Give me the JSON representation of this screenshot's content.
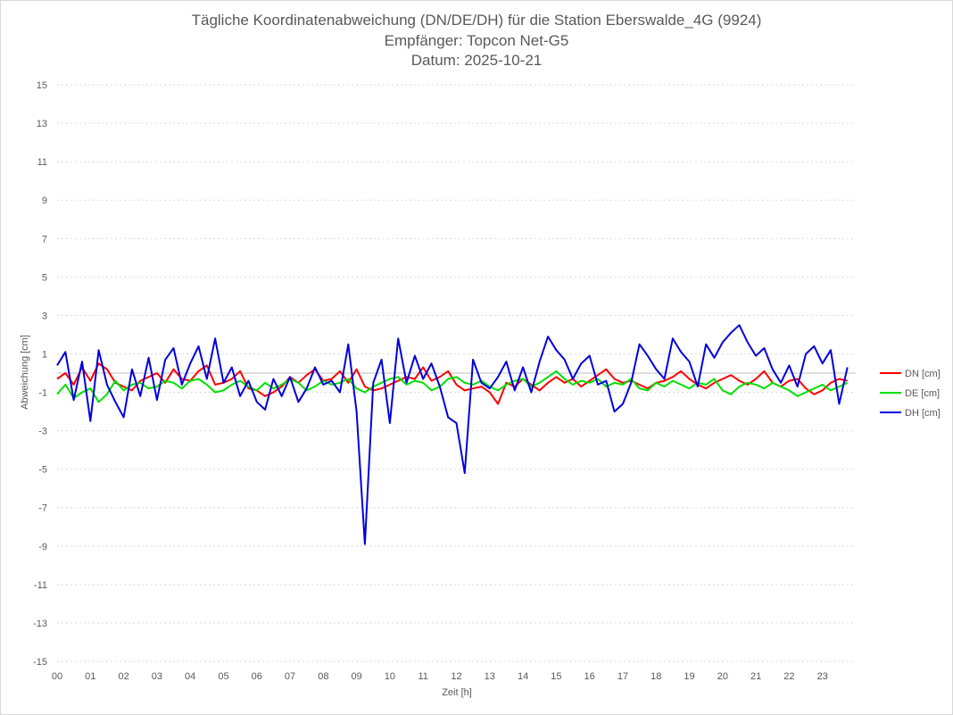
{
  "chart_data": {
    "type": "line",
    "title": [
      "Tägliche Koordinatenabweichung (DN/DE/DH) für die Station Eberswalde_4G (9924)",
      "Empfänger: Topcon Net-G5",
      "Datum: 2025-10-21"
    ],
    "xlabel": "Zeit [h]",
    "ylabel": "Abweichung [cm]",
    "xlim": [
      0,
      24
    ],
    "ylim": [
      -15,
      15
    ],
    "x_ticks": [
      "00",
      "01",
      "02",
      "03",
      "04",
      "05",
      "06",
      "07",
      "08",
      "09",
      "10",
      "11",
      "12",
      "13",
      "14",
      "15",
      "16",
      "17",
      "18",
      "19",
      "20",
      "21",
      "22",
      "23"
    ],
    "y_ticks": [
      15,
      13,
      11,
      9,
      7,
      5,
      3,
      1,
      -1,
      -3,
      -5,
      -7,
      -9,
      -11,
      -13,
      -15
    ],
    "grid": "horizontal-dotted",
    "legend_position": "right",
    "sample_step_h": 0.25,
    "series": [
      {
        "name": "DN [cm]",
        "color": "#ff0000",
        "values": [
          -0.3,
          0.0,
          -0.6,
          0.3,
          -0.4,
          0.5,
          0.2,
          -0.5,
          -0.7,
          -0.9,
          -0.4,
          -0.2,
          0.0,
          -0.5,
          0.2,
          -0.3,
          -0.4,
          0.1,
          0.4,
          -0.6,
          -0.5,
          -0.3,
          0.1,
          -0.8,
          -0.9,
          -1.2,
          -1.0,
          -0.7,
          -0.2,
          -0.5,
          -0.1,
          0.2,
          -0.4,
          -0.3,
          0.1,
          -0.5,
          0.2,
          -0.7,
          -0.9,
          -0.8,
          -0.6,
          -0.4,
          -0.2,
          -0.3,
          0.3,
          -0.4,
          -0.2,
          0.1,
          -0.6,
          -0.9,
          -0.8,
          -0.7,
          -1.0,
          -1.6,
          -0.5,
          -0.7,
          -0.3,
          -0.6,
          -0.9,
          -0.5,
          -0.2,
          -0.5,
          -0.3,
          -0.7,
          -0.4,
          -0.1,
          0.2,
          -0.3,
          -0.5,
          -0.4,
          -0.6,
          -0.8,
          -0.5,
          -0.4,
          -0.2,
          0.1,
          -0.3,
          -0.6,
          -0.8,
          -0.5,
          -0.3,
          -0.1,
          -0.4,
          -0.6,
          -0.3,
          0.1,
          -0.5,
          -0.7,
          -0.4,
          -0.3,
          -0.8,
          -1.1,
          -0.9,
          -0.5,
          -0.3,
          -0.4
        ],
        "note": "15-minute samples 00:00–23:45"
      },
      {
        "name": "DE [cm]",
        "color": "#00e000",
        "values": [
          -1.1,
          -0.6,
          -1.3,
          -1.0,
          -0.8,
          -1.5,
          -1.1,
          -0.4,
          -0.9,
          -0.6,
          -0.5,
          -0.8,
          -0.7,
          -0.4,
          -0.5,
          -0.8,
          -0.4,
          -0.3,
          -0.6,
          -1.0,
          -0.9,
          -0.6,
          -0.4,
          -0.7,
          -0.9,
          -0.5,
          -0.8,
          -0.6,
          -0.3,
          -0.5,
          -0.9,
          -0.7,
          -0.4,
          -0.6,
          -0.5,
          -0.3,
          -0.8,
          -1.0,
          -0.7,
          -0.5,
          -0.3,
          -0.2,
          -0.6,
          -0.4,
          -0.5,
          -0.9,
          -0.7,
          -0.3,
          -0.2,
          -0.5,
          -0.6,
          -0.4,
          -0.7,
          -0.9,
          -0.6,
          -0.4,
          -0.3,
          -0.7,
          -0.5,
          -0.2,
          0.1,
          -0.3,
          -0.6,
          -0.4,
          -0.5,
          -0.3,
          -0.7,
          -0.5,
          -0.6,
          -0.3,
          -0.8,
          -0.9,
          -0.5,
          -0.7,
          -0.4,
          -0.6,
          -0.8,
          -0.5,
          -0.6,
          -0.3,
          -0.9,
          -1.1,
          -0.7,
          -0.5,
          -0.6,
          -0.8,
          -0.5,
          -0.7,
          -0.9,
          -1.2,
          -1.0,
          -0.8,
          -0.6,
          -0.9,
          -0.7,
          -0.5
        ],
        "note": "15-minute samples 00:00–23:45"
      },
      {
        "name": "DH [cm]",
        "color": "#0000dd",
        "values": [
          0.4,
          1.1,
          -1.4,
          0.6,
          -2.5,
          1.2,
          -0.6,
          -1.5,
          -2.3,
          0.2,
          -1.2,
          0.8,
          -1.4,
          0.7,
          1.3,
          -0.6,
          0.5,
          1.4,
          -0.3,
          1.8,
          -0.5,
          0.3,
          -1.2,
          -0.4,
          -1.5,
          -1.9,
          -0.3,
          -1.2,
          -0.2,
          -1.5,
          -0.8,
          0.3,
          -0.6,
          -0.4,
          -1.0,
          1.5,
          -2.0,
          -8.9,
          -0.5,
          0.7,
          -2.6,
          1.8,
          -0.5,
          0.9,
          -0.3,
          0.5,
          -0.7,
          -2.3,
          -2.6,
          -5.2,
          0.7,
          -0.5,
          -0.8,
          -0.2,
          0.6,
          -0.9,
          0.3,
          -1.0,
          0.6,
          1.9,
          1.2,
          0.7,
          -0.3,
          0.5,
          0.9,
          -0.6,
          -0.4,
          -2.0,
          -1.6,
          -0.5,
          1.5,
          0.9,
          0.2,
          -0.3,
          1.8,
          1.1,
          0.6,
          -0.7,
          1.5,
          0.8,
          1.6,
          2.1,
          2.5,
          1.6,
          0.9,
          1.3,
          0.2,
          -0.5,
          0.4,
          -0.7,
          1.0,
          1.4,
          0.5,
          1.2,
          -1.6,
          0.3
        ],
        "note": "15-minute samples 00:00–23:45"
      }
    ]
  }
}
